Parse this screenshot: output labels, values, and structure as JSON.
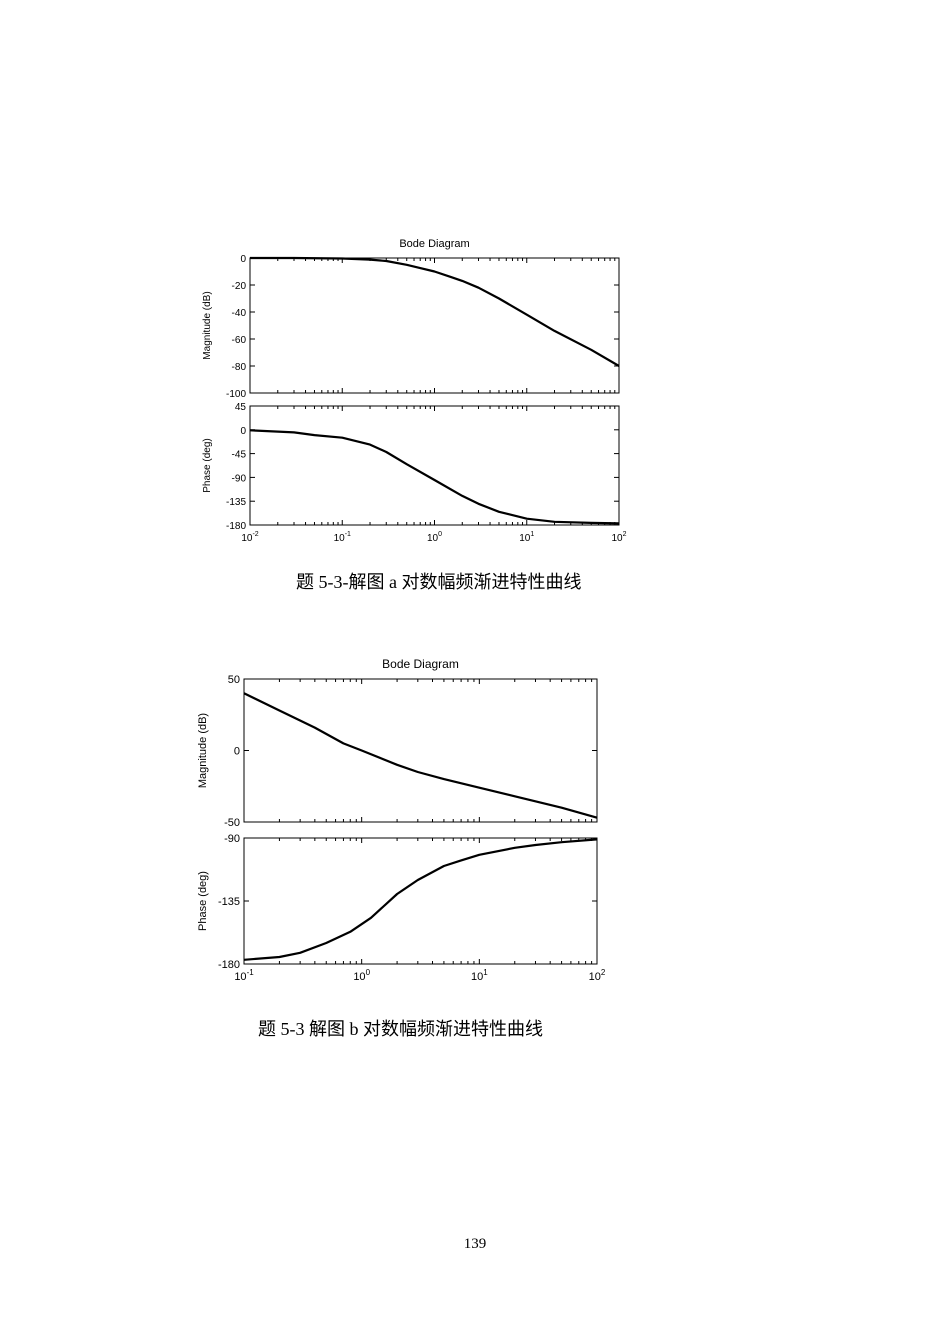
{
  "chart_data": [
    {
      "type": "line",
      "title": "Bode Diagram",
      "caption": "题  5-3-解图 a 对数幅频渐进特性曲线",
      "x_scale": "log",
      "xlim": [
        0.01,
        100
      ],
      "x_tick_labels": [
        "10-2",
        "10-1",
        "100",
        "101",
        "102"
      ],
      "panels": [
        {
          "ylabel": "Magnitude (dB)",
          "ylim": [
            -100,
            0
          ],
          "y_ticks": [
            0,
            -20,
            -40,
            -60,
            -80,
            -100
          ],
          "series": [
            {
              "x": [
                0.01,
                0.03,
                0.1,
                0.2,
                0.3,
                0.5,
                0.7,
                1,
                1.5,
                2,
                3,
                5,
                10,
                20,
                50,
                100
              ],
              "y": [
                0,
                0,
                -0.4,
                -1.2,
                -2.2,
                -5,
                -7.5,
                -10,
                -14,
                -17,
                -22,
                -30,
                -42,
                -54,
                -68,
                -80
              ]
            }
          ]
        },
        {
          "ylabel": "Phase (deg)",
          "ylim": [
            -180,
            45
          ],
          "y_ticks": [
            45,
            0,
            -45,
            -90,
            -135,
            -180
          ],
          "series": [
            {
              "x": [
                0.01,
                0.03,
                0.05,
                0.1,
                0.2,
                0.3,
                0.5,
                1,
                2,
                3,
                5,
                10,
                20,
                50,
                100
              ],
              "y": [
                -1,
                -5,
                -10,
                -15,
                -28,
                -42,
                -65,
                -95,
                -125,
                -140,
                -155,
                -168,
                -174,
                -176,
                -177
              ]
            }
          ]
        }
      ]
    },
    {
      "type": "line",
      "title": "Bode Diagram",
      "caption": "题 5-3 解图 b 对数幅频渐进特性曲线",
      "x_scale": "log",
      "xlim": [
        0.1,
        100
      ],
      "x_tick_labels": [
        "10-1",
        "100",
        "101",
        "102"
      ],
      "panels": [
        {
          "ylabel": "Magnitude (dB)",
          "ylim": [
            -50,
            50
          ],
          "y_ticks": [
            50,
            0,
            -50
          ],
          "series": [
            {
              "x": [
                0.1,
                0.2,
                0.4,
                0.7,
                1,
                2,
                3,
                5,
                10,
                20,
                50,
                100
              ],
              "y": [
                40,
                28,
                16,
                5,
                0,
                -10,
                -15,
                -20,
                -26,
                -32,
                -40,
                -47
              ]
            }
          ]
        },
        {
          "ylabel": "Phase (deg)",
          "ylim": [
            -180,
            -90
          ],
          "y_ticks": [
            -90,
            -135,
            -180
          ],
          "series": [
            {
              "x": [
                0.1,
                0.2,
                0.3,
                0.5,
                0.8,
                1.2,
                2,
                3,
                5,
                7,
                10,
                20,
                30,
                50,
                100
              ],
              "y": [
                -177,
                -175,
                -172,
                -165,
                -157,
                -147,
                -130,
                -120,
                -110,
                -106,
                -102,
                -97,
                -95,
                -93,
                -91
              ]
            }
          ]
        }
      ]
    }
  ],
  "page_number": "139"
}
